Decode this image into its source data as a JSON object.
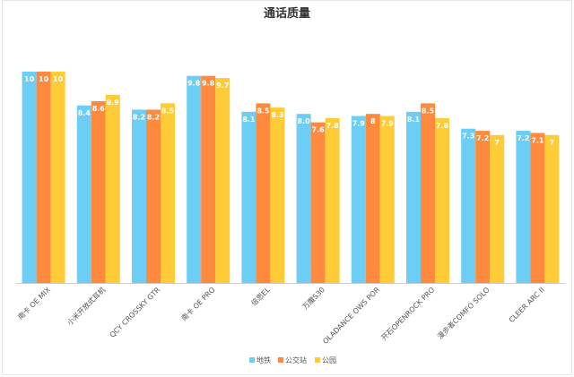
{
  "chart_data": {
    "type": "bar",
    "title": "通话质量",
    "categories": [
      "南卡 OE MIX",
      "小米开放式耳机",
      "QCY CROSSKY GTR",
      "南卡 OE PRO",
      "倍思EL",
      "万魔S30",
      "OLADANCE OWS POR",
      "开石OPENROCK PRO",
      "漫步者COMFO SOLO",
      "CLEER ARC II"
    ],
    "series": [
      {
        "name": "地铁",
        "color": "#6ccdf5",
        "values": [
          10,
          8.4,
          8.2,
          9.8,
          8.1,
          8.0,
          7.9,
          8.1,
          7.3,
          7.2
        ]
      },
      {
        "name": "公交站",
        "color": "#ff8a3d",
        "values": [
          10,
          8.6,
          8.2,
          9.8,
          8.5,
          7.6,
          8,
          8.5,
          7.2,
          7.1
        ]
      },
      {
        "name": "公园",
        "color": "#ffcb37",
        "values": [
          10,
          8.9,
          8.5,
          9.7,
          8.3,
          7.8,
          7.9,
          7.8,
          7,
          7
        ]
      }
    ],
    "value_labels": [
      [
        "10",
        "8.4",
        "8.2",
        "9.8",
        "8.1",
        "8.0",
        "7.9",
        "8.1",
        "7.3",
        "7.2"
      ],
      [
        "10",
        "8.6",
        "8.2",
        "9.8",
        "8.5",
        "7.6",
        "8",
        "8.5",
        "7.2",
        "7.1"
      ],
      [
        "10",
        "8.9",
        "8.5",
        "9.7",
        "8.3",
        "7.8",
        "7.9",
        "7.8",
        "7",
        "7"
      ]
    ],
    "ylim": [
      0,
      10
    ],
    "grid": false,
    "legend_position": "bottom-center"
  }
}
